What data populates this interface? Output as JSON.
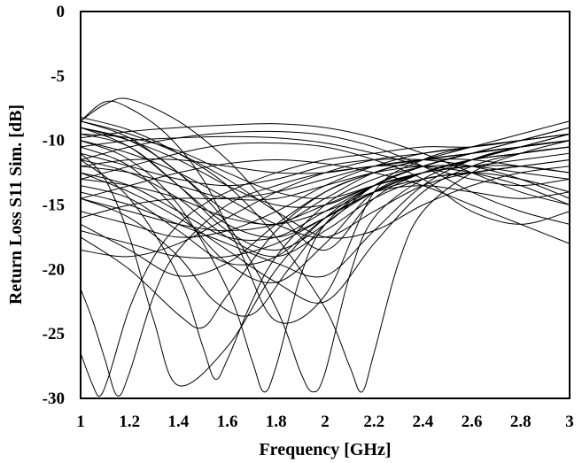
{
  "chart_data": {
    "type": "line",
    "title": "",
    "xlabel": "Frequency [GHz]",
    "ylabel": "Return Loss S11 Sim. [dB]",
    "xlim": [
      1,
      3
    ],
    "ylim": [
      -30,
      0
    ],
    "xticks": [
      "1",
      "1.2",
      "1.4",
      "1.6",
      "1.8",
      "2",
      "2.2",
      "2.4",
      "2.6",
      "2.8",
      "3"
    ],
    "yticks": [
      "0",
      "-5",
      "-10",
      "-15",
      "-20",
      "-25",
      "-30"
    ],
    "grid": false,
    "legend": "none",
    "line_color": "#000000",
    "series": [
      {
        "x": [
          1,
          1.2,
          1.4,
          1.6,
          1.8,
          2,
          2.2,
          2.4,
          2.6,
          2.8,
          3
        ],
        "y": [
          -8.5,
          -9.8,
          -12.5,
          -15.5,
          -16.5,
          -14.5,
          -12.5,
          -11.5,
          -10.5,
          -9.5,
          -8.5
        ]
      },
      {
        "x": [
          1,
          1.2,
          1.4,
          1.6,
          1.8,
          2,
          2.2,
          2.4,
          2.6,
          2.8,
          3
        ],
        "y": [
          -9.5,
          -10.5,
          -13.5,
          -17,
          -18.5,
          -16.5,
          -13.5,
          -12,
          -11,
          -10,
          -9
        ]
      },
      {
        "x": [
          1,
          1.2,
          1.4,
          1.6,
          1.8,
          2,
          2.2,
          2.4,
          2.6,
          2.8,
          3
        ],
        "y": [
          -10.5,
          -12,
          -15.5,
          -19.5,
          -21,
          -18,
          -14,
          -12.5,
          -11.5,
          -10.5,
          -9.5
        ]
      },
      {
        "x": [
          1,
          1.1,
          1.2,
          1.35,
          1.5,
          1.65,
          1.8,
          2,
          2.2,
          2.4,
          2.6,
          2.8,
          3
        ],
        "y": [
          -8.5,
          -7,
          -7.5,
          -9.5,
          -13,
          -18.5,
          -24,
          -22,
          -14,
          -11.5,
          -10.5,
          -10,
          -9.5
        ]
      },
      {
        "x": [
          1,
          1.1,
          1.2,
          1.4,
          1.6,
          1.8,
          2,
          2.2,
          2.4,
          2.6,
          2.8,
          3
        ],
        "y": [
          -8.5,
          -7.2,
          -6.8,
          -8.5,
          -11.5,
          -15.5,
          -18.5,
          -14.5,
          -12.5,
          -11.5,
          -11,
          -10.5
        ]
      },
      {
        "x": [
          1,
          1.2,
          1.4,
          1.6,
          1.8,
          2,
          2.2,
          2.4,
          2.6,
          2.8,
          3
        ],
        "y": [
          -12.5,
          -13.5,
          -15.5,
          -17.5,
          -17.5,
          -15.5,
          -13.5,
          -12,
          -11,
          -10,
          -9
        ]
      },
      {
        "x": [
          1,
          1.2,
          1.4,
          1.6,
          1.8,
          2,
          2.2,
          2.4,
          2.6,
          2.8,
          3
        ],
        "y": [
          -13.5,
          -14.5,
          -17,
          -19.5,
          -19,
          -16,
          -14,
          -12.5,
          -11.5,
          -10.5,
          -9.5
        ]
      },
      {
        "x": [
          1,
          1.2,
          1.4,
          1.55,
          1.7,
          1.85,
          2,
          2.2,
          2.4,
          2.6,
          2.8,
          3
        ],
        "y": [
          -14.5,
          -16,
          -19,
          -22.5,
          -23.5,
          -20,
          -16.5,
          -14,
          -12.5,
          -11.5,
          -10.5,
          -9.5
        ]
      },
      {
        "x": [
          1,
          1.2,
          1.4,
          1.6,
          1.8,
          2,
          2.2,
          2.4,
          2.6,
          2.8,
          3
        ],
        "y": [
          -16.5,
          -18.5,
          -20.5,
          -19.5,
          -16.5,
          -14,
          -12.5,
          -11.5,
          -11,
          -10.5,
          -10
        ]
      },
      {
        "x": [
          1,
          1.2,
          1.4,
          1.5,
          1.6,
          1.8,
          2,
          2.2,
          2.4,
          2.6,
          2.8,
          3
        ],
        "y": [
          -17.5,
          -20,
          -23.5,
          -24.5,
          -22,
          -17,
          -14,
          -12.5,
          -11.5,
          -11,
          -10.5,
          -10
        ]
      },
      {
        "x": [
          1,
          1.05,
          1.08,
          1.12,
          1.2,
          1.3,
          1.4,
          1.5,
          1.6,
          1.8,
          2,
          2.2,
          2.4,
          2.6,
          2.8,
          3
        ],
        "y": [
          -26.5,
          -29,
          -29.8,
          -28,
          -23,
          -19,
          -16.5,
          -15,
          -14,
          -12.5,
          -11.5,
          -11,
          -10.5,
          -10.5,
          -10,
          -9.5
        ]
      },
      {
        "x": [
          1,
          1.05,
          1.1,
          1.15,
          1.2,
          1.3,
          1.4,
          1.6,
          1.8,
          2,
          2.2,
          2.4,
          2.6,
          2.8,
          3
        ],
        "y": [
          -21.5,
          -24,
          -27,
          -29.8,
          -28,
          -22,
          -18.5,
          -15,
          -13.5,
          -12.5,
          -12,
          -11.5,
          -11,
          -10.5,
          -10
        ]
      },
      {
        "x": [
          1,
          1.1,
          1.2,
          1.3,
          1.4,
          1.6,
          1.8,
          2,
          2.2,
          2.4,
          2.6,
          2.8,
          3
        ],
        "y": [
          -11,
          -13,
          -17.5,
          -24,
          -29,
          -26,
          -20,
          -16,
          -13.5,
          -12,
          -11,
          -10.5,
          -10
        ]
      },
      {
        "x": [
          1,
          1.2,
          1.4,
          1.5,
          1.55,
          1.6,
          1.7,
          1.8,
          2,
          2.2,
          2.4,
          2.6,
          2.8,
          3
        ],
        "y": [
          -11.5,
          -14.5,
          -20.5,
          -26,
          -28.5,
          -27,
          -22.5,
          -19,
          -15,
          -13,
          -12,
          -11,
          -10.5,
          -10
        ]
      },
      {
        "x": [
          1,
          1.2,
          1.4,
          1.6,
          1.7,
          1.75,
          1.8,
          1.9,
          2,
          2.2,
          2.4,
          2.6,
          2.8,
          3
        ],
        "y": [
          -10,
          -11.5,
          -15,
          -21.5,
          -27,
          -29.5,
          -27.5,
          -20.5,
          -16.5,
          -13.5,
          -12,
          -11,
          -10.5,
          -10
        ]
      },
      {
        "x": [
          1,
          1.2,
          1.4,
          1.6,
          1.8,
          1.9,
          1.95,
          2,
          2.1,
          2.2,
          2.4,
          2.6,
          2.8,
          3
        ],
        "y": [
          -9,
          -10,
          -12.5,
          -16.5,
          -23,
          -28,
          -29.5,
          -28,
          -20.5,
          -16,
          -13,
          -11.5,
          -10.5,
          -10
        ]
      },
      {
        "x": [
          1,
          1.2,
          1.4,
          1.6,
          1.8,
          2,
          2.1,
          2.15,
          2.2,
          2.3,
          2.4,
          2.6,
          2.8,
          3
        ],
        "y": [
          -8.2,
          -9.2,
          -11,
          -13.5,
          -17.5,
          -23,
          -27.5,
          -29.5,
          -26.5,
          -19.5,
          -15.5,
          -12.5,
          -11,
          -10
        ]
      },
      {
        "x": [
          1,
          1.2,
          1.4,
          1.6,
          1.8,
          2,
          2.2,
          2.4,
          2.6,
          2.8,
          3
        ],
        "y": [
          -9.8,
          -9.3,
          -9,
          -8.8,
          -8.7,
          -9,
          -9.8,
          -11,
          -12.5,
          -14,
          -15
        ]
      },
      {
        "x": [
          1,
          1.2,
          1.4,
          1.6,
          1.8,
          2,
          2.2,
          2.4,
          2.6,
          2.8,
          3
        ],
        "y": [
          -11.5,
          -10.5,
          -9.8,
          -9.4,
          -9.3,
          -9.6,
          -10.5,
          -12,
          -14,
          -15.5,
          -16.5
        ]
      },
      {
        "x": [
          1,
          1.2,
          1.4,
          1.6,
          1.8,
          2,
          2.2,
          2.4,
          2.6,
          2.8,
          3
        ],
        "y": [
          -13,
          -12,
          -11,
          -10.3,
          -10.2,
          -10.5,
          -11.5,
          -13,
          -15.5,
          -16.5,
          -15.5
        ]
      },
      {
        "x": [
          1,
          1.2,
          1.4,
          1.6,
          1.8,
          2,
          2.2,
          2.4,
          2.6,
          2.8,
          3
        ],
        "y": [
          -14.5,
          -13.5,
          -12.5,
          -11.8,
          -11.5,
          -11.8,
          -12.5,
          -13.5,
          -15,
          -16.5,
          -18
        ]
      },
      {
        "x": [
          1,
          1.2,
          1.4,
          1.6,
          1.8,
          2,
          2.2,
          2.4,
          2.6,
          2.8,
          3
        ],
        "y": [
          -10.5,
          -10,
          -9.8,
          -9.7,
          -9.8,
          -10.2,
          -11,
          -12,
          -13,
          -13.5,
          -13
        ]
      },
      {
        "x": [
          1,
          1.2,
          1.4,
          1.6,
          1.8,
          2,
          2.2,
          2.4,
          2.6,
          2.8,
          3
        ],
        "y": [
          -12,
          -12.5,
          -13.5,
          -14.5,
          -14.5,
          -13.5,
          -12.5,
          -12,
          -12,
          -12.5,
          -13
        ]
      },
      {
        "x": [
          1,
          1.2,
          1.4,
          1.6,
          1.8,
          2,
          2.2,
          2.4,
          2.6,
          2.8,
          3
        ],
        "y": [
          -9,
          -10.5,
          -13.5,
          -16.5,
          -17.5,
          -16,
          -14,
          -13,
          -12.5,
          -13,
          -14
        ]
      },
      {
        "x": [
          1,
          1.2,
          1.4,
          1.6,
          1.8,
          2,
          2.2,
          2.4,
          2.6,
          2.8,
          3
        ],
        "y": [
          -11,
          -12,
          -13,
          -13.5,
          -13,
          -12,
          -11.5,
          -11.5,
          -12,
          -13,
          -14.5
        ]
      },
      {
        "x": [
          1,
          1.2,
          1.4,
          1.6,
          1.8,
          2,
          2.2,
          2.4,
          2.6,
          2.8,
          3
        ],
        "y": [
          -15.5,
          -16.5,
          -17.5,
          -17,
          -15.5,
          -13.5,
          -12,
          -11,
          -10.5,
          -10,
          -9.5
        ]
      },
      {
        "x": [
          1,
          1.2,
          1.4,
          1.6,
          1.8,
          2,
          2.2,
          2.4,
          2.6,
          2.8,
          3
        ],
        "y": [
          -18.5,
          -19,
          -18,
          -16,
          -14,
          -12.5,
          -11.5,
          -11,
          -10.5,
          -10,
          -9.5
        ]
      },
      {
        "x": [
          1,
          1.2,
          1.4,
          1.6,
          1.8,
          2,
          2.2,
          2.4,
          2.6,
          2.8,
          3
        ],
        "y": [
          -14,
          -15,
          -16.5,
          -18,
          -19.5,
          -20.5,
          -17,
          -13.5,
          -11.5,
          -10.5,
          -10
        ]
      },
      {
        "x": [
          1,
          1.2,
          1.4,
          1.6,
          1.8,
          2,
          2.2,
          2.4,
          2.6,
          2.8,
          3
        ],
        "y": [
          -12.5,
          -14,
          -16,
          -18.5,
          -21,
          -22.5,
          -18,
          -14,
          -12,
          -11,
          -10.5
        ]
      },
      {
        "x": [
          1,
          1.2,
          1.4,
          1.6,
          1.8,
          2,
          2.2,
          2.4,
          2.6,
          2.8,
          3
        ],
        "y": [
          -10,
          -11,
          -12.5,
          -14.5,
          -16.5,
          -17.5,
          -15.5,
          -13.5,
          -12.5,
          -12,
          -11.5
        ]
      },
      {
        "x": [
          1,
          1.2,
          1.4,
          1.6,
          1.8,
          2,
          2.2,
          2.4,
          2.6,
          2.8,
          3
        ],
        "y": [
          -8.5,
          -9.5,
          -11,
          -13,
          -15.5,
          -17.5,
          -17,
          -15,
          -13.5,
          -12.5,
          -12
        ]
      },
      {
        "x": [
          1,
          1.2,
          1.4,
          1.6,
          1.8,
          2,
          2.2,
          2.4,
          2.6,
          2.8,
          3
        ],
        "y": [
          -9,
          -10,
          -11.5,
          -13.5,
          -15,
          -15,
          -13.5,
          -12.5,
          -12,
          -11.5,
          -11
        ]
      },
      {
        "x": [
          1,
          1.2,
          1.4,
          1.6,
          1.8,
          2,
          2.2,
          2.4,
          2.6,
          2.8,
          3
        ],
        "y": [
          -13,
          -13.5,
          -14.5,
          -16,
          -16.5,
          -15.5,
          -14,
          -13.5,
          -14,
          -14.5,
          -14
        ]
      },
      {
        "x": [
          1,
          1.2,
          1.4,
          1.6,
          1.8,
          2,
          2.2,
          2.4,
          2.6,
          2.8,
          3
        ],
        "y": [
          -16,
          -15,
          -14.5,
          -14.5,
          -14,
          -13,
          -12,
          -11.5,
          -11.5,
          -12,
          -12.5
        ]
      },
      {
        "x": [
          1,
          1.2,
          1.4,
          1.6,
          1.8,
          2,
          2.2,
          2.4,
          2.6,
          2.8,
          3
        ],
        "y": [
          -11.5,
          -12.5,
          -14.5,
          -17.5,
          -19,
          -17,
          -14.5,
          -13,
          -12.5,
          -12,
          -11.5
        ]
      },
      {
        "x": [
          1,
          1.2,
          1.4,
          1.6,
          1.8,
          2,
          2.2,
          2.4,
          2.6,
          2.8,
          3
        ],
        "y": [
          -9.5,
          -9.8,
          -10.8,
          -12.5,
          -14,
          -14.5,
          -13.5,
          -12.5,
          -11.5,
          -11,
          -10.5
        ]
      },
      {
        "x": [
          1,
          1.2,
          1.4,
          1.6,
          1.8,
          2,
          2.2,
          2.4,
          2.6,
          2.8,
          3
        ],
        "y": [
          -14.5,
          -15.5,
          -16.5,
          -17,
          -16.5,
          -15,
          -13.5,
          -12.5,
          -12,
          -12,
          -12.5
        ]
      },
      {
        "x": [
          1,
          1.2,
          1.4,
          1.6,
          1.8,
          2,
          2.2,
          2.4,
          2.6,
          2.8,
          3
        ],
        "y": [
          -12,
          -11.5,
          -11.5,
          -12,
          -12.5,
          -12.5,
          -12,
          -12,
          -12.5,
          -13.5,
          -15
        ]
      },
      {
        "x": [
          1,
          1.2,
          1.4,
          1.6,
          1.8,
          2,
          2.2,
          2.4,
          2.6,
          2.8,
          3
        ],
        "y": [
          -17,
          -18,
          -19,
          -19,
          -18,
          -16,
          -14,
          -12.5,
          -11.5,
          -11,
          -10.5
        ]
      }
    ]
  }
}
